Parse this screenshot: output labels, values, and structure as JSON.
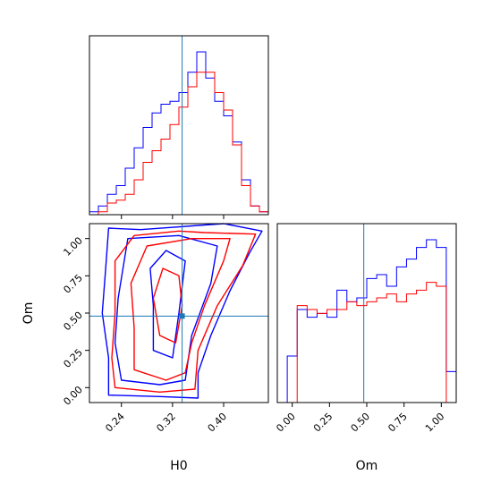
{
  "chart_data": [
    {
      "panel": "H0 marginal",
      "type": "histogram",
      "x_range": [
        0.19,
        0.47
      ],
      "truth": 0.335,
      "bins": 20,
      "series": [
        {
          "color": "#0000ff",
          "values": [
            1,
            3,
            7,
            10,
            16,
            23,
            30,
            35,
            38,
            39,
            42,
            49,
            56,
            47,
            39,
            34,
            25,
            12,
            3,
            1
          ]
        },
        {
          "color": "#ff0000",
          "values": [
            0,
            1,
            4,
            5,
            7,
            12,
            18,
            22,
            26,
            31,
            37,
            44,
            49,
            49,
            42,
            36,
            24,
            10,
            3,
            1
          ]
        }
      ]
    },
    {
      "panel": "Om marginal",
      "type": "histogram",
      "x_range": [
        -0.1,
        1.1
      ],
      "truth": 0.48,
      "bins": 18,
      "series": [
        {
          "color": "#0000ff",
          "values": [
            0,
            24,
            48,
            44,
            46,
            44,
            58,
            52,
            54,
            64,
            66,
            60,
            70,
            74,
            80,
            84,
            80,
            16
          ]
        },
        {
          "color": "#ff0000",
          "values": [
            0,
            0,
            50,
            48,
            46,
            48,
            48,
            52,
            50,
            52,
            54,
            56,
            52,
            56,
            58,
            62,
            60,
            0
          ]
        }
      ]
    },
    {
      "panel": "H0 vs Om",
      "type": "contour",
      "xlabel": "H0",
      "ylabel": "Om",
      "x_range": [
        0.19,
        0.47
      ],
      "y_range": [
        -0.1,
        1.1
      ],
      "x_ticks": [
        "0.24",
        "0.32",
        "0.40"
      ],
      "y_ticks": [
        "0.00",
        "0.25",
        "0.50",
        "0.75",
        "1.00"
      ],
      "truth": {
        "H0": 0.335,
        "Om": 0.48
      },
      "series": [
        {
          "color": "#0000ff",
          "contours": [
            [
              [
                0.22,
                -0.05
              ],
              [
                0.3,
                -0.06
              ],
              [
                0.36,
                -0.07
              ],
              [
                0.36,
                0.1
              ],
              [
                0.38,
                0.35
              ],
              [
                0.41,
                0.65
              ],
              [
                0.44,
                0.9
              ],
              [
                0.46,
                1.05
              ],
              [
                0.4,
                1.1
              ],
              [
                0.27,
                1.06
              ],
              [
                0.22,
                1.07
              ],
              [
                0.215,
                0.78
              ],
              [
                0.21,
                0.5
              ],
              [
                0.22,
                0.2
              ]
            ],
            [
              [
                0.24,
                0.05
              ],
              [
                0.3,
                0.02
              ],
              [
                0.34,
                0.05
              ],
              [
                0.35,
                0.35
              ],
              [
                0.38,
                0.7
              ],
              [
                0.39,
                0.95
              ],
              [
                0.33,
                1.02
              ],
              [
                0.25,
                1.0
              ],
              [
                0.235,
                0.6
              ],
              [
                0.23,
                0.3
              ]
            ],
            [
              [
                0.29,
                0.25
              ],
              [
                0.32,
                0.2
              ],
              [
                0.33,
                0.5
              ],
              [
                0.34,
                0.85
              ],
              [
                0.31,
                0.92
              ],
              [
                0.285,
                0.8
              ],
              [
                0.29,
                0.55
              ]
            ]
          ]
        },
        {
          "color": "#ff0000",
          "contours": [
            [
              [
                0.23,
                0.0
              ],
              [
                0.3,
                -0.03
              ],
              [
                0.355,
                -0.01
              ],
              [
                0.36,
                0.25
              ],
              [
                0.39,
                0.55
              ],
              [
                0.43,
                0.82
              ],
              [
                0.45,
                1.03
              ],
              [
                0.37,
                1.04
              ],
              [
                0.33,
                1.05
              ],
              [
                0.26,
                1.02
              ],
              [
                0.23,
                0.85
              ],
              [
                0.23,
                0.5
              ],
              [
                0.225,
                0.2
              ]
            ],
            [
              [
                0.26,
                0.12
              ],
              [
                0.31,
                0.05
              ],
              [
                0.34,
                0.1
              ],
              [
                0.35,
                0.3
              ],
              [
                0.37,
                0.55
              ],
              [
                0.4,
                0.85
              ],
              [
                0.41,
                1.0
              ],
              [
                0.35,
                1.0
              ],
              [
                0.28,
                0.95
              ],
              [
                0.255,
                0.7
              ],
              [
                0.26,
                0.4
              ]
            ],
            [
              [
                0.3,
                0.35
              ],
              [
                0.325,
                0.3
              ],
              [
                0.335,
                0.55
              ],
              [
                0.33,
                0.75
              ],
              [
                0.305,
                0.8
              ],
              [
                0.29,
                0.6
              ]
            ]
          ]
        }
      ]
    }
  ],
  "labels": {
    "x_bottom_left": "H0",
    "x_bottom_right": "Om",
    "y_left": "Om"
  },
  "om_panel_ticks": [
    "0.00",
    "0.25",
    "0.50",
    "0.75",
    "1.00"
  ]
}
